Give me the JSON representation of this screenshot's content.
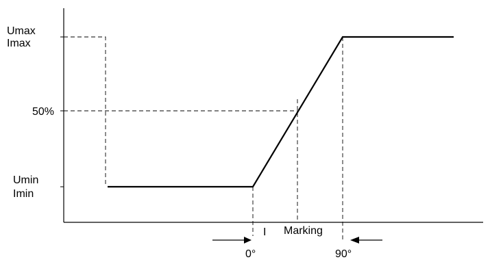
{
  "labels": {
    "y_max_u": "Umax",
    "y_max_i": "Imax",
    "y_mid": "50%",
    "y_min_u": "Umin",
    "y_min_i": "Imin",
    "marking": "Marking",
    "marking_tick": "I",
    "x_zero": "0°",
    "x_ninety": "90°"
  },
  "colors": {
    "line": "#000000",
    "dashed": "#000000",
    "background": "#ffffff"
  }
}
